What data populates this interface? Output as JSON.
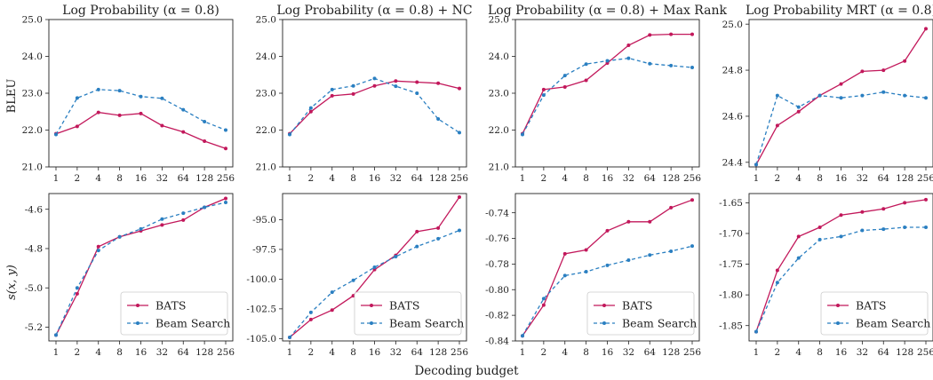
{
  "figure": {
    "xlabel": "Decoding budget",
    "ylabel_top": "BLEU",
    "ylabel_bottom": "s(x, y)"
  },
  "colors": {
    "bats": "#c2185b",
    "beam": "#2a7fc1"
  },
  "legend": {
    "bats": "BATS",
    "beam": "Beam Search"
  },
  "chart_data": [
    {
      "type": "line",
      "row": 0,
      "col": 0,
      "title": "Log Probability (α = 0.8)",
      "categories": [
        "1",
        "2",
        "4",
        "8",
        "16",
        "32",
        "64",
        "128",
        "256"
      ],
      "ylim": [
        21.0,
        25.0
      ],
      "yticks": [
        21.0,
        22.0,
        23.0,
        24.0,
        25.0
      ],
      "ytick_labels": [
        "21.0",
        "22.0",
        "23.0",
        "24.0",
        "25.0"
      ],
      "series": [
        {
          "name": "BATS",
          "values": [
            21.9,
            22.1,
            22.48,
            22.4,
            22.45,
            22.12,
            21.95,
            21.7,
            21.5
          ]
        },
        {
          "name": "Beam Search",
          "values": [
            21.88,
            22.87,
            23.1,
            23.07,
            22.91,
            22.86,
            22.55,
            22.23,
            22.0
          ]
        }
      ]
    },
    {
      "type": "line",
      "row": 0,
      "col": 1,
      "title": "Log Probability (α = 0.8) + NC",
      "categories": [
        "1",
        "2",
        "4",
        "8",
        "16",
        "32",
        "64",
        "128",
        "256"
      ],
      "ylim": [
        21.0,
        25.0
      ],
      "yticks": [
        21.0,
        22.0,
        23.0,
        24.0,
        25.0
      ],
      "ytick_labels": [
        "21.0",
        "22.0",
        "23.0",
        "24.0",
        "25.0"
      ],
      "series": [
        {
          "name": "BATS",
          "values": [
            21.9,
            22.5,
            22.93,
            22.98,
            23.2,
            23.33,
            23.3,
            23.27,
            23.13
          ]
        },
        {
          "name": "Beam Search",
          "values": [
            21.88,
            22.6,
            23.1,
            23.2,
            23.4,
            23.19,
            23.0,
            22.3,
            21.93
          ]
        }
      ]
    },
    {
      "type": "line",
      "row": 0,
      "col": 2,
      "title": "Log Probability (α = 0.8) + Max Rank",
      "categories": [
        "1",
        "2",
        "4",
        "8",
        "16",
        "32",
        "64",
        "128",
        "256"
      ],
      "ylim": [
        21.0,
        25.0
      ],
      "yticks": [
        21.0,
        22.0,
        23.0,
        24.0,
        25.0
      ],
      "ytick_labels": [
        "21.0",
        "22.0",
        "23.0",
        "24.0",
        "25.0"
      ],
      "series": [
        {
          "name": "BATS",
          "values": [
            21.9,
            23.1,
            23.17,
            23.35,
            23.82,
            24.3,
            24.58,
            24.6,
            24.6
          ]
        },
        {
          "name": "Beam Search",
          "values": [
            21.88,
            22.95,
            23.48,
            23.79,
            23.88,
            23.95,
            23.8,
            23.75,
            23.7
          ]
        }
      ]
    },
    {
      "type": "line",
      "row": 0,
      "col": 3,
      "title": "Log Probability MRT (α = 0.8)",
      "categories": [
        "1",
        "2",
        "4",
        "8",
        "16",
        "32",
        "64",
        "128",
        "256"
      ],
      "ylim": [
        24.38,
        25.02
      ],
      "yticks": [
        24.4,
        24.6,
        24.8,
        25.0
      ],
      "ytick_labels": [
        "24.4",
        "24.6",
        "24.8",
        "25.0"
      ],
      "series": [
        {
          "name": "BATS",
          "values": [
            24.39,
            24.56,
            24.62,
            24.69,
            24.74,
            24.795,
            24.8,
            24.84,
            24.98
          ]
        },
        {
          "name": "Beam Search",
          "values": [
            24.39,
            24.69,
            24.64,
            24.69,
            24.68,
            24.69,
            24.705,
            24.69,
            24.68
          ]
        }
      ]
    },
    {
      "type": "line",
      "row": 1,
      "col": 0,
      "title": "",
      "categories": [
        "1",
        "2",
        "4",
        "8",
        "16",
        "32",
        "64",
        "128",
        "256"
      ],
      "ylim": [
        -5.27,
        -4.52
      ],
      "yticks": [
        -5.2,
        -5.0,
        -4.8,
        -4.6
      ],
      "ytick_labels": [
        "-5.2",
        "-5.0",
        "-4.8",
        "-4.6"
      ],
      "series": [
        {
          "name": "BATS",
          "values": [
            -5.24,
            -5.03,
            -4.79,
            -4.74,
            -4.71,
            -4.68,
            -4.655,
            -4.59,
            -4.545
          ]
        },
        {
          "name": "Beam Search",
          "values": [
            -5.24,
            -5.0,
            -4.81,
            -4.74,
            -4.7,
            -4.65,
            -4.62,
            -4.59,
            -4.565
          ]
        }
      ]
    },
    {
      "type": "line",
      "row": 1,
      "col": 1,
      "title": "",
      "categories": [
        "1",
        "2",
        "4",
        "8",
        "16",
        "32",
        "64",
        "128",
        "256"
      ],
      "ylim": [
        -105.2,
        -92.8
      ],
      "yticks": [
        -105.0,
        -102.5,
        -100.0,
        -97.5,
        -95.0
      ],
      "ytick_labels": [
        "-105.0",
        "-102.5",
        "-100.0",
        "-97.5",
        "-95.0"
      ],
      "series": [
        {
          "name": "BATS",
          "values": [
            -104.9,
            -103.4,
            -102.6,
            -101.4,
            -99.2,
            -98.0,
            -96.0,
            -95.7,
            -93.1
          ]
        },
        {
          "name": "Beam Search",
          "values": [
            -104.9,
            -102.8,
            -101.1,
            -100.1,
            -99.0,
            -98.1,
            -97.25,
            -96.6,
            -95.9
          ]
        }
      ]
    },
    {
      "type": "line",
      "row": 1,
      "col": 2,
      "title": "",
      "categories": [
        "1",
        "2",
        "4",
        "8",
        "16",
        "32",
        "64",
        "128",
        "256"
      ],
      "ylim": [
        -0.84,
        -0.725
      ],
      "yticks": [
        -0.84,
        -0.82,
        -0.8,
        -0.78,
        -0.76,
        -0.74
      ],
      "ytick_labels": [
        "-0.84",
        "-0.82",
        "-0.80",
        "-0.78",
        "-0.76",
        "-0.74"
      ],
      "series": [
        {
          "name": "BATS",
          "values": [
            -0.836,
            -0.812,
            -0.772,
            -0.769,
            -0.754,
            -0.747,
            -0.747,
            -0.736,
            -0.73
          ]
        },
        {
          "name": "Beam Search",
          "values": [
            -0.836,
            -0.807,
            -0.789,
            -0.786,
            -0.781,
            -0.777,
            -0.773,
            -0.77,
            -0.766
          ]
        }
      ]
    },
    {
      "type": "line",
      "row": 1,
      "col": 3,
      "title": "",
      "categories": [
        "1",
        "2",
        "4",
        "8",
        "16",
        "32",
        "64",
        "128",
        "256"
      ],
      "ylim": [
        -1.875,
        -1.635
      ],
      "yticks": [
        -1.85,
        -1.8,
        -1.75,
        -1.7,
        -1.65
      ],
      "ytick_labels": [
        "-1.85",
        "-1.80",
        "-1.75",
        "-1.70",
        "-1.65"
      ],
      "series": [
        {
          "name": "BATS",
          "values": [
            -1.86,
            -1.76,
            -1.705,
            -1.69,
            -1.67,
            -1.665,
            -1.66,
            -1.65,
            -1.645
          ]
        },
        {
          "name": "Beam Search",
          "values": [
            -1.86,
            -1.78,
            -1.74,
            -1.71,
            -1.705,
            -1.695,
            -1.693,
            -1.69,
            -1.69
          ]
        }
      ]
    }
  ]
}
